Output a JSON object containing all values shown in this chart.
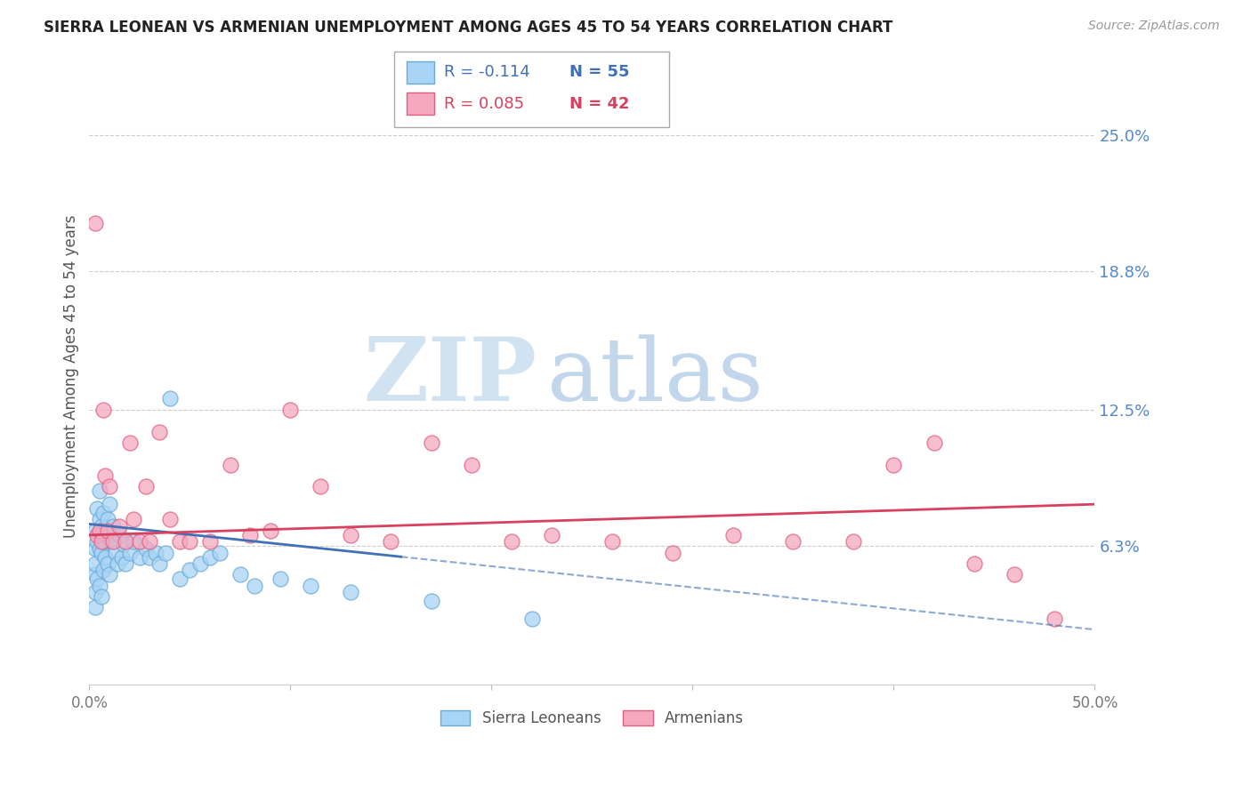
{
  "title": "SIERRA LEONEAN VS ARMENIAN UNEMPLOYMENT AMONG AGES 45 TO 54 YEARS CORRELATION CHART",
  "source": "Source: ZipAtlas.com",
  "ylabel": "Unemployment Among Ages 45 to 54 years",
  "xlim": [
    0.0,
    0.5
  ],
  "ylim": [
    0.0,
    0.28
  ],
  "xticks": [
    0.0,
    0.1,
    0.2,
    0.3,
    0.4,
    0.5
  ],
  "xticklabels": [
    "0.0%",
    "",
    "",
    "",
    "",
    "50.0%"
  ],
  "yticks_right": [
    0.063,
    0.125,
    0.188,
    0.25
  ],
  "yticklabels_right": [
    "6.3%",
    "12.5%",
    "18.8%",
    "25.0%"
  ],
  "legend_r1": "R = -0.114",
  "legend_n1": "N = 55",
  "legend_r2": "R = 0.085",
  "legend_n2": "N = 42",
  "color_sl": "#a8d4f5",
  "color_arm": "#f5a8c0",
  "color_sl_edge": "#6aaad8",
  "color_arm_edge": "#e06080",
  "color_sl_line": "#4070b8",
  "color_arm_line": "#d84060",
  "background": "#ffffff",
  "grid_color": "#cccccc",
  "title_color": "#222222",
  "tick_color_right": "#5588cc",
  "watermark_zip_color": "#cce0f0",
  "watermark_atlas_color": "#b8d0e8",
  "sl_line_start_y": 0.073,
  "sl_line_end_y": 0.025,
  "sl_line_solid_end_x": 0.155,
  "arm_line_start_y": 0.068,
  "arm_line_end_y": 0.082,
  "sierra_x": [
    0.003,
    0.003,
    0.003,
    0.003,
    0.003,
    0.003,
    0.004,
    0.004,
    0.004,
    0.005,
    0.005,
    0.005,
    0.005,
    0.006,
    0.006,
    0.006,
    0.007,
    0.007,
    0.007,
    0.008,
    0.008,
    0.009,
    0.009,
    0.01,
    0.01,
    0.01,
    0.011,
    0.012,
    0.013,
    0.014,
    0.015,
    0.016,
    0.017,
    0.018,
    0.02,
    0.022,
    0.025,
    0.028,
    0.03,
    0.033,
    0.035,
    0.038,
    0.04,
    0.045,
    0.05,
    0.055,
    0.06,
    0.065,
    0.075,
    0.082,
    0.095,
    0.11,
    0.13,
    0.17,
    0.22
  ],
  "sierra_y": [
    0.05,
    0.062,
    0.07,
    0.055,
    0.042,
    0.035,
    0.08,
    0.065,
    0.048,
    0.088,
    0.075,
    0.062,
    0.045,
    0.072,
    0.06,
    0.04,
    0.078,
    0.065,
    0.052,
    0.07,
    0.058,
    0.075,
    0.055,
    0.082,
    0.068,
    0.05,
    0.065,
    0.072,
    0.06,
    0.055,
    0.068,
    0.058,
    0.064,
    0.055,
    0.06,
    0.065,
    0.058,
    0.062,
    0.058,
    0.06,
    0.055,
    0.06,
    0.13,
    0.048,
    0.052,
    0.055,
    0.058,
    0.06,
    0.05,
    0.045,
    0.048,
    0.045,
    0.042,
    0.038,
    0.03
  ],
  "armenia_x": [
    0.003,
    0.004,
    0.005,
    0.006,
    0.007,
    0.008,
    0.009,
    0.01,
    0.012,
    0.015,
    0.018,
    0.02,
    0.022,
    0.025,
    0.028,
    0.03,
    0.035,
    0.04,
    0.045,
    0.05,
    0.06,
    0.07,
    0.08,
    0.09,
    0.1,
    0.115,
    0.13,
    0.15,
    0.17,
    0.19,
    0.21,
    0.23,
    0.26,
    0.29,
    0.32,
    0.35,
    0.38,
    0.4,
    0.42,
    0.44,
    0.46,
    0.48
  ],
  "armenia_y": [
    0.21,
    0.068,
    0.07,
    0.065,
    0.125,
    0.095,
    0.07,
    0.09,
    0.065,
    0.072,
    0.065,
    0.11,
    0.075,
    0.065,
    0.09,
    0.065,
    0.115,
    0.075,
    0.065,
    0.065,
    0.065,
    0.1,
    0.068,
    0.07,
    0.125,
    0.09,
    0.068,
    0.065,
    0.11,
    0.1,
    0.065,
    0.068,
    0.065,
    0.06,
    0.068,
    0.065,
    0.065,
    0.1,
    0.11,
    0.055,
    0.05,
    0.03
  ]
}
